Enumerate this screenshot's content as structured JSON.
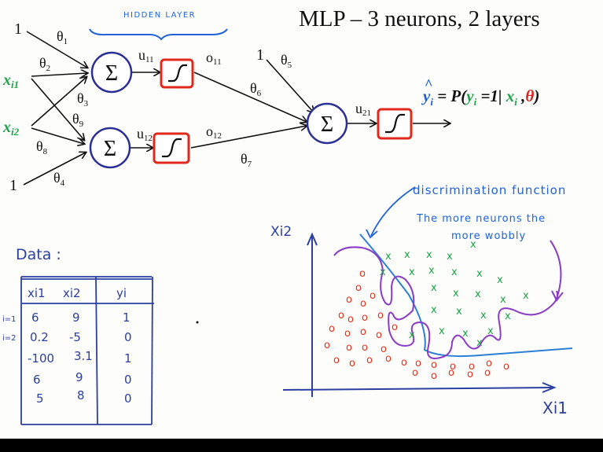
{
  "title": "MLP – 3 neurons, 2 layers",
  "hidden_layer_label": "HIDDEN LAYER",
  "network": {
    "sum_symbol": "Σ",
    "bias_label": "1",
    "inputs": [
      "x",
      "x"
    ],
    "input_subscripts": [
      "i1",
      "i2"
    ],
    "weights": [
      "θ",
      "θ",
      "θ",
      "θ",
      "θ",
      "θ",
      "θ",
      "θ",
      "θ"
    ],
    "weight_subscripts": [
      "1",
      "2",
      "3",
      "4",
      "5",
      "6",
      "7",
      "8",
      "9"
    ],
    "signals": {
      "u11": [
        "u",
        "11"
      ],
      "u12": [
        "u",
        "12"
      ],
      "o11": [
        "o",
        "11"
      ],
      "o12": [
        "o",
        "12"
      ],
      "u21": [
        "u",
        "21"
      ]
    }
  },
  "formula": {
    "lhs_base": "y",
    "lhs_sub": "i",
    "eq": " = P(",
    "y": "y",
    "y_sub": "i",
    "cond": " =1| ",
    "x": "x",
    "x_sub": "i",
    "comma": " ,",
    "theta": "θ",
    "close": ")"
  },
  "annotations": {
    "discrimination": "discrimination function",
    "wobbly_line1": "The more neurons the",
    "wobbly_line2": "more wobbly"
  },
  "data_table": {
    "title": "Data :",
    "headers": [
      "xi1",
      "xi2",
      "yi"
    ],
    "row_labels": [
      "i=1",
      "i=2"
    ],
    "rows": [
      [
        "6",
        "9",
        "1"
      ],
      [
        "0.2",
        "-5",
        "0"
      ],
      [
        "-100",
        "3.1",
        "1"
      ],
      [
        "6",
        "9",
        "0"
      ],
      [
        "5",
        "8",
        "0"
      ]
    ]
  },
  "plot": {
    "y_axis_label": "Xi2",
    "x_axis_label": "Xi1",
    "class_markers": {
      "positive": "x",
      "negative": "o"
    },
    "colors": {
      "positive": "#1fa24a",
      "negative": "#e0341f",
      "discrimination": "#2b7fd6",
      "wobbly": "#8a3cc6"
    }
  },
  "colors": {
    "neuron_stroke": "#2a2f95",
    "activation_stroke": "#e0281c",
    "annotation_blue": "#1f63d6"
  }
}
